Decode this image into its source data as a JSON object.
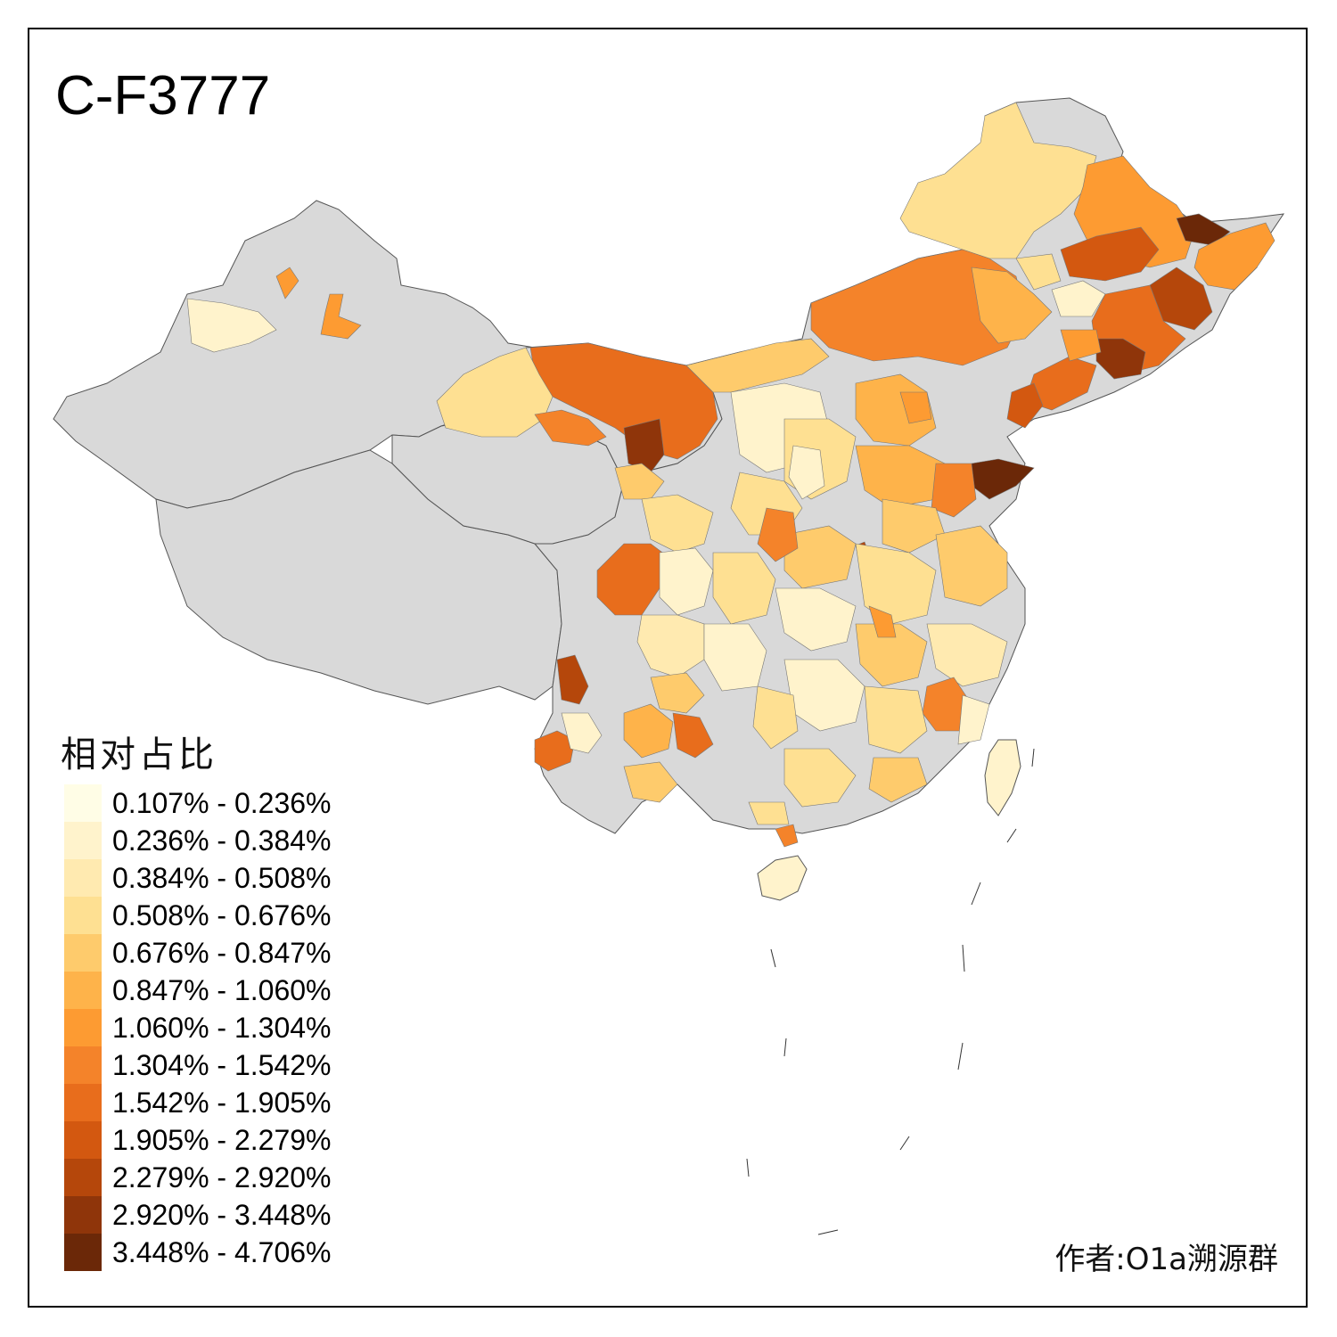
{
  "title": "C-F3777",
  "legend": {
    "title": "相对占比",
    "items": [
      {
        "label": "0.107% - 0.236%",
        "color": "#fffde6"
      },
      {
        "label": "0.236% - 0.384%",
        "color": "#fff3cc"
      },
      {
        "label": "0.384% - 0.508%",
        "color": "#ffeab0"
      },
      {
        "label": "0.508% - 0.676%",
        "color": "#fee092"
      },
      {
        "label": "0.676% - 0.847%",
        "color": "#fecb6c"
      },
      {
        "label": "0.847% - 1.060%",
        "color": "#feb34a"
      },
      {
        "label": "1.060% - 1.304%",
        "color": "#fd9b32"
      },
      {
        "label": "1.304% - 1.542%",
        "color": "#f4832a"
      },
      {
        "label": "1.542% - 1.905%",
        "color": "#e86d1c"
      },
      {
        "label": "1.905% - 2.279%",
        "color": "#d35810"
      },
      {
        "label": "2.279% - 2.920%",
        "color": "#b5470b"
      },
      {
        "label": "2.920% - 3.448%",
        "color": "#8f350a"
      },
      {
        "label": "3.448% - 4.706%",
        "color": "#6b2808"
      }
    ]
  },
  "no_data_color": "#d9d9d9",
  "author": "作者:O1a溯源群"
}
